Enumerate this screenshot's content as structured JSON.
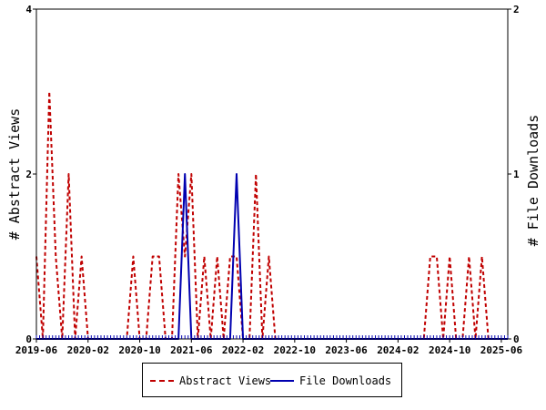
{
  "chart_data": {
    "type": "line",
    "xlabel": "",
    "ylabel": "# Abstract Views",
    "y2label": "# File Downloads",
    "ylim": [
      0,
      4
    ],
    "y2lim": [
      0,
      2
    ],
    "yticks": [
      "0",
      "2",
      "4"
    ],
    "y2ticks": [
      "0",
      "1",
      "2"
    ],
    "xticks": [
      "2019-06",
      "2020-02",
      "2020-10",
      "2021-06",
      "2022-02",
      "2022-10",
      "2023-06",
      "2024-02",
      "2024-10",
      "2025-06"
    ],
    "grid": false,
    "legend_position": "bottom",
    "months": [
      "2019-06",
      "2019-07",
      "2019-08",
      "2019-09",
      "2019-10",
      "2019-11",
      "2019-12",
      "2020-01",
      "2020-02",
      "2020-03",
      "2020-04",
      "2020-05",
      "2020-06",
      "2020-07",
      "2020-08",
      "2020-09",
      "2020-10",
      "2020-11",
      "2020-12",
      "2021-01",
      "2021-02",
      "2021-03",
      "2021-04",
      "2021-05",
      "2021-06",
      "2021-07",
      "2021-08",
      "2021-09",
      "2021-10",
      "2021-11",
      "2021-12",
      "2022-01",
      "2022-02",
      "2022-03",
      "2022-04",
      "2022-05",
      "2022-06",
      "2022-07",
      "2022-08",
      "2022-09",
      "2022-10",
      "2022-11",
      "2022-12",
      "2023-01",
      "2023-02",
      "2023-03",
      "2023-04",
      "2023-05",
      "2023-06",
      "2023-07",
      "2023-08",
      "2023-09",
      "2023-10",
      "2023-11",
      "2023-12",
      "2024-01",
      "2024-02",
      "2024-03",
      "2024-04",
      "2024-05",
      "2024-06",
      "2024-07",
      "2024-08",
      "2024-09",
      "2024-10",
      "2024-11",
      "2024-12",
      "2025-01",
      "2025-02",
      "2025-03",
      "2025-04",
      "2025-05",
      "2025-06",
      "2025-07"
    ],
    "series": [
      {
        "name": "Abstract Views",
        "axis": "left",
        "color": "#c00000",
        "dash": true,
        "values": [
          1,
          0,
          3,
          1,
          0,
          2,
          0,
          1,
          0,
          0,
          0,
          0,
          0,
          0,
          0,
          1,
          0,
          0,
          1,
          1,
          0,
          0,
          2,
          1,
          2,
          0,
          1,
          0,
          1,
          0,
          1,
          1,
          0,
          0,
          2,
          0,
          1,
          0,
          0,
          0,
          0,
          0,
          0,
          0,
          0,
          0,
          0,
          0,
          0,
          0,
          0,
          0,
          0,
          0,
          0,
          0,
          0,
          0,
          0,
          0,
          0,
          1,
          1,
          0,
          1,
          0,
          0,
          1,
          0,
          1,
          0,
          0,
          0,
          0
        ]
      },
      {
        "name": "File Downloads",
        "axis": "right",
        "color": "#0000b0",
        "dash": false,
        "values": [
          0,
          0,
          0,
          0,
          0,
          0,
          0,
          0,
          0,
          0,
          0,
          0,
          0,
          0,
          0,
          0,
          0,
          0,
          0,
          0,
          0,
          0,
          0,
          1,
          0,
          0,
          0,
          0,
          0,
          0,
          0,
          1,
          0,
          0,
          0,
          0,
          0,
          0,
          0,
          0,
          0,
          0,
          0,
          0,
          0,
          0,
          0,
          0,
          0,
          0,
          0,
          0,
          0,
          0,
          0,
          0,
          0,
          0,
          0,
          0,
          0,
          0,
          0,
          0,
          0,
          0,
          0,
          0,
          0,
          0,
          0,
          0,
          0,
          0
        ]
      }
    ]
  }
}
